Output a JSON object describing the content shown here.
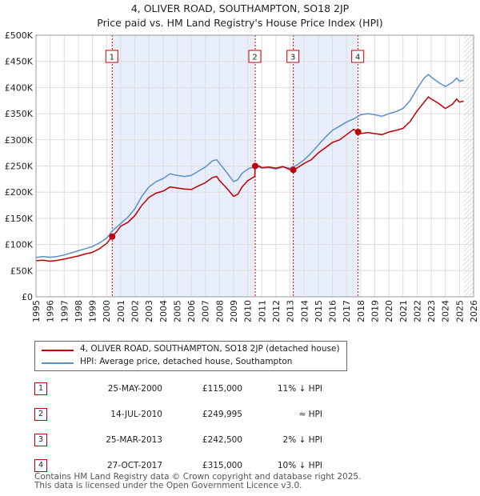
{
  "title_line1": "4, OLIVER ROAD, SOUTHAMPTON, SO18 2JP",
  "title_line2": "Price paid vs. HM Land Registry's House Price Index (HPI)",
  "chart_data": {
    "type": "line",
    "xlim": [
      1995,
      2026
    ],
    "ylim": [
      0,
      500000
    ],
    "yticks": [
      0,
      50000,
      100000,
      150000,
      200000,
      250000,
      300000,
      350000,
      400000,
      450000,
      500000
    ],
    "ytick_labels": [
      "£0",
      "£50K",
      "£100K",
      "£150K",
      "£200K",
      "£250K",
      "£300K",
      "£350K",
      "£400K",
      "£450K",
      "£500K"
    ],
    "xtick_labels": [
      "1995",
      "1996",
      "1997",
      "1998",
      "1999",
      "2000",
      "2001",
      "2002",
      "2003",
      "2004",
      "2005",
      "2006",
      "2007",
      "2008",
      "2009",
      "2010",
      "2011",
      "2012",
      "2013",
      "2014",
      "2015",
      "2016",
      "2017",
      "2018",
      "2019",
      "2020",
      "2021",
      "2022",
      "2023",
      "2024",
      "2025",
      "2026"
    ],
    "grid": true,
    "shaded_ranges": [
      [
        2000.4,
        2010.53
      ],
      [
        2013.23,
        2017.82
      ]
    ],
    "projection_start": 2025.3,
    "series": [
      {
        "name": "4, OLIVER ROAD, SOUTHAMPTON, SO18 2JP (detached house)",
        "color": "#c00000",
        "points": [
          [
            1995,
            69000
          ],
          [
            1995.5,
            70000
          ],
          [
            1996,
            68000
          ],
          [
            1996.5,
            69500
          ],
          [
            1997,
            72000
          ],
          [
            1997.5,
            75000
          ],
          [
            1998,
            78000
          ],
          [
            1998.5,
            82000
          ],
          [
            1999,
            85000
          ],
          [
            1999.5,
            92000
          ],
          [
            2000,
            102000
          ],
          [
            2000.4,
            115000
          ],
          [
            2000.7,
            124000
          ],
          [
            2001,
            135000
          ],
          [
            2001.5,
            142000
          ],
          [
            2002,
            155000
          ],
          [
            2002.5,
            175000
          ],
          [
            2003,
            190000
          ],
          [
            2003.5,
            198000
          ],
          [
            2004,
            202000
          ],
          [
            2004.5,
            210000
          ],
          [
            2005,
            208000
          ],
          [
            2005.5,
            206000
          ],
          [
            2006,
            205000
          ],
          [
            2006.5,
            212000
          ],
          [
            2007,
            218000
          ],
          [
            2007.5,
            228000
          ],
          [
            2007.8,
            230000
          ],
          [
            2008,
            222000
          ],
          [
            2008.5,
            208000
          ],
          [
            2009,
            192000
          ],
          [
            2009.3,
            196000
          ],
          [
            2009.6,
            210000
          ],
          [
            2010,
            222000
          ],
          [
            2010.5,
            230000
          ],
          [
            2010.53,
            249995
          ],
          [
            2010.8,
            250000
          ],
          [
            2011,
            247000
          ],
          [
            2011.5,
            248000
          ],
          [
            2012,
            246000
          ],
          [
            2012.5,
            249000
          ],
          [
            2013,
            243000
          ],
          [
            2013.23,
            242500
          ],
          [
            2013.6,
            248000
          ],
          [
            2014,
            255000
          ],
          [
            2014.5,
            262000
          ],
          [
            2015,
            275000
          ],
          [
            2015.5,
            285000
          ],
          [
            2016,
            295000
          ],
          [
            2016.5,
            300000
          ],
          [
            2017,
            310000
          ],
          [
            2017.5,
            320000
          ],
          [
            2017.82,
            315000
          ],
          [
            2018,
            312000
          ],
          [
            2018.5,
            314000
          ],
          [
            2019,
            312000
          ],
          [
            2019.5,
            310000
          ],
          [
            2020,
            315000
          ],
          [
            2020.5,
            318000
          ],
          [
            2021,
            322000
          ],
          [
            2021.5,
            335000
          ],
          [
            2022,
            355000
          ],
          [
            2022.5,
            372000
          ],
          [
            2022.8,
            382000
          ],
          [
            2023,
            378000
          ],
          [
            2023.5,
            370000
          ],
          [
            2024,
            360000
          ],
          [
            2024.5,
            368000
          ],
          [
            2024.8,
            378000
          ],
          [
            2025,
            372000
          ],
          [
            2025.3,
            374000
          ]
        ]
      },
      {
        "name": "HPI: Average price, detached house, Southampton",
        "color": "#5b8fc7",
        "points": [
          [
            1995,
            75000
          ],
          [
            1995.5,
            77000
          ],
          [
            1996,
            75500
          ],
          [
            1996.5,
            77000
          ],
          [
            1997,
            80000
          ],
          [
            1997.5,
            84000
          ],
          [
            1998,
            88000
          ],
          [
            1998.5,
            92000
          ],
          [
            1999,
            96000
          ],
          [
            1999.5,
            103000
          ],
          [
            2000,
            112000
          ],
          [
            2000.4,
            126000
          ],
          [
            2001,
            140000
          ],
          [
            2001.5,
            152000
          ],
          [
            2002,
            168000
          ],
          [
            2002.5,
            192000
          ],
          [
            2003,
            210000
          ],
          [
            2003.5,
            220000
          ],
          [
            2004,
            226000
          ],
          [
            2004.5,
            235000
          ],
          [
            2005,
            232000
          ],
          [
            2005.5,
            230000
          ],
          [
            2006,
            232000
          ],
          [
            2006.5,
            240000
          ],
          [
            2007,
            248000
          ],
          [
            2007.5,
            260000
          ],
          [
            2007.8,
            262000
          ],
          [
            2008,
            255000
          ],
          [
            2008.5,
            238000
          ],
          [
            2009,
            220000
          ],
          [
            2009.3,
            224000
          ],
          [
            2009.6,
            236000
          ],
          [
            2010,
            244000
          ],
          [
            2010.53,
            250000
          ],
          [
            2011,
            246000
          ],
          [
            2011.5,
            247000
          ],
          [
            2012,
            244000
          ],
          [
            2012.5,
            248000
          ],
          [
            2013,
            246000
          ],
          [
            2013.5,
            252000
          ],
          [
            2014,
            262000
          ],
          [
            2014.5,
            275000
          ],
          [
            2015,
            290000
          ],
          [
            2015.5,
            305000
          ],
          [
            2016,
            318000
          ],
          [
            2016.5,
            326000
          ],
          [
            2017,
            334000
          ],
          [
            2017.5,
            340000
          ],
          [
            2017.82,
            345000
          ],
          [
            2018,
            348000
          ],
          [
            2018.5,
            350000
          ],
          [
            2019,
            348000
          ],
          [
            2019.5,
            345000
          ],
          [
            2020,
            350000
          ],
          [
            2020.5,
            354000
          ],
          [
            2021,
            360000
          ],
          [
            2021.5,
            375000
          ],
          [
            2022,
            398000
          ],
          [
            2022.5,
            418000
          ],
          [
            2022.8,
            425000
          ],
          [
            2023,
            420000
          ],
          [
            2023.5,
            410000
          ],
          [
            2024,
            402000
          ],
          [
            2024.5,
            410000
          ],
          [
            2024.8,
            418000
          ],
          [
            2025,
            412000
          ],
          [
            2025.3,
            414000
          ]
        ]
      }
    ],
    "sale_markers": [
      {
        "label": "1",
        "x": 2000.4,
        "y": 115000
      },
      {
        "label": "2",
        "x": 2010.53,
        "y": 249995
      },
      {
        "label": "3",
        "x": 2013.23,
        "y": 242500
      },
      {
        "label": "4",
        "x": 2017.82,
        "y": 315000
      }
    ]
  },
  "legend": {
    "property_label": "4, OLIVER ROAD, SOUTHAMPTON, SO18 2JP (detached house)",
    "hpi_label": "HPI: Average price, detached house, Southampton"
  },
  "sales": [
    {
      "num": "1",
      "date": "25-MAY-2000",
      "price": "£115,000",
      "hpi": "11% ↓ HPI"
    },
    {
      "num": "2",
      "date": "14-JUL-2010",
      "price": "£249,995",
      "hpi": "≈ HPI"
    },
    {
      "num": "3",
      "date": "25-MAR-2013",
      "price": "£242,500",
      "hpi": "2% ↓ HPI"
    },
    {
      "num": "4",
      "date": "27-OCT-2017",
      "price": "£315,000",
      "hpi": "10% ↓ HPI"
    }
  ],
  "footer_line1": "Contains HM Land Registry data © Crown copyright and database right 2025.",
  "footer_line2": "This data is licensed under the Open Government Licence v3.0."
}
